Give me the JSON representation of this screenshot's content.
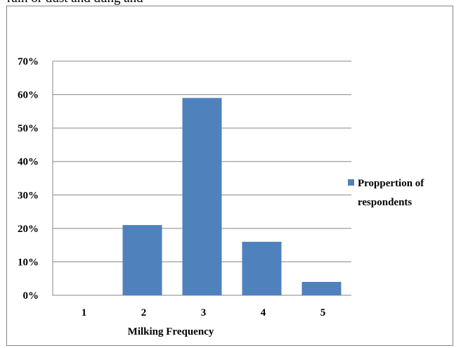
{
  "page": {
    "top_fragment_text": "rain or dust and dung and"
  },
  "chart_data": {
    "type": "bar",
    "categories": [
      "1",
      "2",
      "3",
      "4",
      "5"
    ],
    "series": [
      {
        "name": "Proppertion of respondents",
        "values": [
          0.0,
          0.21,
          0.59,
          0.16,
          0.04
        ],
        "color": "#4F81BD"
      }
    ],
    "title": "",
    "xlabel": "Milking Frequency",
    "ylabel": "",
    "ylim": [
      0,
      0.7
    ],
    "yticks": [
      0,
      0.1,
      0.2,
      0.3,
      0.4,
      0.5,
      0.6,
      0.7
    ],
    "ytick_labels": [
      "0%",
      "10%",
      "20%",
      "30%",
      "40%",
      "50%",
      "60%",
      "70%"
    ],
    "y_format": "percent",
    "grid": true,
    "legend_position": "right",
    "legend_lines": [
      "Proppertion of",
      "respondents"
    ]
  },
  "colors": {
    "bar": "#4F81BD",
    "gridline": "#868686",
    "frame_border": "#858585"
  }
}
